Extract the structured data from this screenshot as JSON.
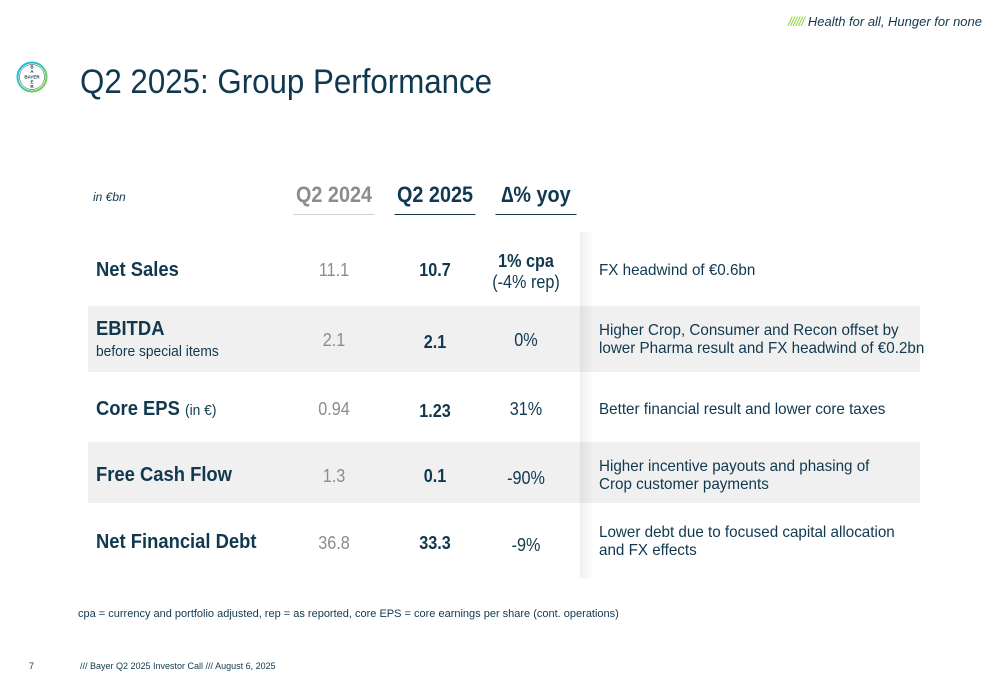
{
  "header": {
    "tagline_slashes": "//////",
    "tagline": "Health for all, Hunger for none",
    "logo_text": "BAYER",
    "title": "Q2 2025: Group Performance"
  },
  "table": {
    "unit": "in €bn",
    "columns": {
      "prior": "Q2 2024",
      "current": "Q2 2025",
      "delta": "∆% yoy"
    },
    "rows": [
      {
        "name": "Net Sales",
        "prior": "11.1",
        "current": "10.7",
        "delta_line1": "1% cpa",
        "delta_line2": "(-4% rep)",
        "comment_line1": "FX headwind of €0.6bn"
      },
      {
        "name": "EBITDA",
        "sub": "before special items",
        "prior": "2.1",
        "current": "2.1",
        "delta": "0%",
        "comment_line1": "Higher Crop, Consumer and Recon offset by",
        "comment_line2": "lower Pharma result and FX headwind of €0.2bn"
      },
      {
        "name": "Core EPS",
        "name_suffix": "(in €)",
        "prior": "0.94",
        "current": "1.23",
        "delta": "31%",
        "comment_line1": "Better financial result and lower core taxes"
      },
      {
        "name": "Free Cash Flow",
        "prior": "1.3",
        "current": "0.1",
        "delta": "-90%",
        "comment_line1": "Higher incentive payouts and phasing of",
        "comment_line2": "Crop customer payments"
      },
      {
        "name": "Net Financial Debt",
        "prior": "36.8",
        "current": "33.3",
        "delta": "-9%",
        "comment_line1": "Lower debt due to focused capital allocation",
        "comment_line2": "and FX effects"
      }
    ]
  },
  "footnote": "cpa = currency and portfolio adjusted, rep = as reported, core EPS = core earnings per share (cont. operations)",
  "footer": {
    "page_number": "7",
    "text": "/// Bayer Q2 2025 Investor Call /// August 6, 2025"
  },
  "colors": {
    "navy": "#10384f",
    "grey": "#8c8c8c",
    "green": "#89d329",
    "blue": "#00bcff",
    "row_shade": "#f0f0f0"
  }
}
